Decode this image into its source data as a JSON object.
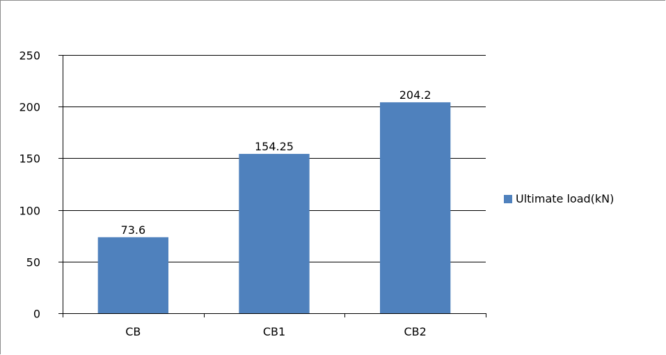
{
  "chart_data": {
    "type": "bar",
    "categories": [
      "CB",
      "CB1",
      "CB2"
    ],
    "series": [
      {
        "name": "Ultimate load(kN)",
        "values": [
          73.6,
          154.25,
          204.2
        ],
        "data_labels": [
          "73.6",
          "154.25",
          "204.2"
        ],
        "color": "#4f81bd"
      }
    ],
    "ylim": [
      0,
      250
    ],
    "yticks": [
      0,
      50,
      100,
      150,
      200,
      250
    ],
    "ytick_labels": [
      "0",
      "50",
      "100",
      "150",
      "200",
      "250"
    ],
    "grid": true,
    "legend": "right",
    "title": "",
    "xlabel": "",
    "ylabel": ""
  }
}
